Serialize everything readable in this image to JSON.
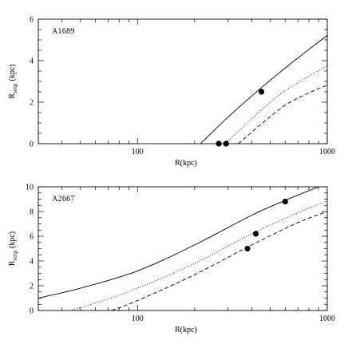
{
  "chart_data": [
    {
      "type": "line",
      "panel_label": "A1689",
      "xlabel": "R(kpc)",
      "ylabel_main": "R",
      "ylabel_sub": "strip",
      "ylabel_unit": "(kpc)",
      "x_scale": "log",
      "xlim": [
        30,
        1000
      ],
      "ylim": [
        0,
        6
      ],
      "x_ticks": [
        100,
        1000
      ],
      "x_tick_labels": [
        "100",
        "1000"
      ],
      "y_ticks": [
        0,
        2,
        4,
        6
      ],
      "y_tick_labels": [
        "0",
        "2",
        "4",
        "6"
      ],
      "series": [
        {
          "style": "solid",
          "x": [
            215,
            300,
            450,
            650,
            1000
          ],
          "y": [
            0.0,
            1.28,
            2.7,
            3.9,
            5.22
          ]
        },
        {
          "style": "dotted",
          "x": [
            290,
            400,
            550,
            750,
            1000
          ],
          "y": [
            0.0,
            1.2,
            2.3,
            3.1,
            3.75
          ]
        },
        {
          "style": "dashed",
          "x": [
            340,
            450,
            600,
            800,
            1000
          ],
          "y": [
            0.0,
            0.95,
            1.85,
            2.45,
            2.82
          ]
        }
      ],
      "points": [
        {
          "x": 268,
          "y": 0.0
        },
        {
          "x": 293,
          "y": 0.0
        },
        {
          "x": 450,
          "y": 2.5
        }
      ],
      "grid": false
    },
    {
      "type": "line",
      "panel_label": "A2667",
      "xlabel": "R(kpc)",
      "ylabel_main": "R",
      "ylabel_sub": "strip",
      "ylabel_unit": "(kpc)",
      "x_scale": "log",
      "xlim": [
        30,
        1000
      ],
      "ylim": [
        0,
        10
      ],
      "x_ticks": [
        100,
        1000
      ],
      "x_tick_labels": [
        "100",
        "1000"
      ],
      "y_ticks": [
        0,
        2,
        4,
        6,
        8,
        10
      ],
      "y_tick_labels": [
        "0",
        "2",
        "4",
        "6",
        "8",
        "10"
      ],
      "series": [
        {
          "style": "solid",
          "x": [
            30,
            50,
            100,
            200,
            400,
            600,
            900
          ],
          "y": [
            1.0,
            1.8,
            3.2,
            5.3,
            7.7,
            8.9,
            10.0
          ]
        },
        {
          "style": "dotted",
          "x": [
            44,
            60,
            100,
            200,
            400,
            700,
            1000
          ],
          "y": [
            0.0,
            0.6,
            1.8,
            3.8,
            6.2,
            7.9,
            8.85
          ]
        },
        {
          "style": "dashed",
          "x": [
            73,
            100,
            200,
            400,
            700,
            1000
          ],
          "y": [
            0.0,
            0.8,
            2.9,
            5.3,
            7.1,
            8.0
          ]
        }
      ],
      "points": [
        {
          "x": 600,
          "y": 8.8
        },
        {
          "x": 420,
          "y": 6.2
        },
        {
          "x": 380,
          "y": 5.0
        }
      ],
      "grid": false
    }
  ]
}
